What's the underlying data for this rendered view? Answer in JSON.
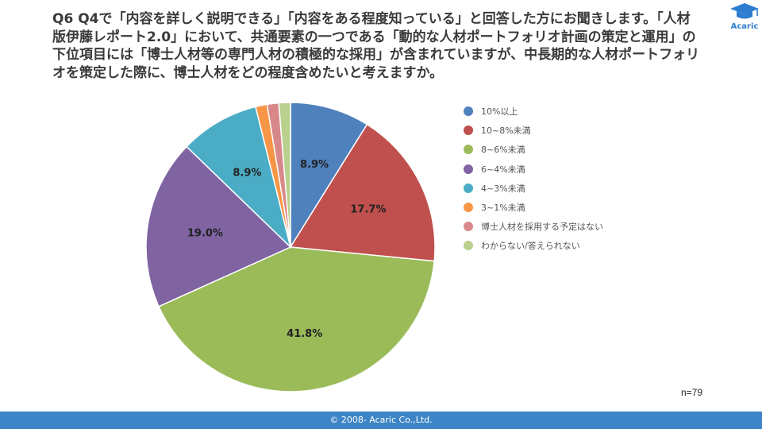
{
  "question": {
    "text": "Q6 Q4で「内容を詳しく説明できる」「内容をある程度知っている」と回答した方にお聞きします。「人材版伊藤レポート2.0」において、共通要素の一つである「動的な人材ポートフォリオ計画の策定と運用」の下位項目には「博士人材等の専門人材の積極的な採用」が含まれていますが、中長期的な人材ポートフォリオを策定した際に、博士人材をどの程度含めたいと考えますか。"
  },
  "logo": {
    "text": "Acaric",
    "icon": "mortarboard-icon",
    "color": "#2e7dd1"
  },
  "chart_data": {
    "type": "pie",
    "categories": [
      "10%以上",
      "10~8%未満",
      "8~6%未満",
      "6~4%未満",
      "4~3%未満",
      "3~1%未満",
      "博士人材を採用する予定はない",
      "わからない/答えられない"
    ],
    "values": [
      8.9,
      17.7,
      41.8,
      19.0,
      8.9,
      1.3,
      1.3,
      1.3
    ],
    "labels": [
      "8.9%",
      "17.7%",
      "41.8%",
      "19.0%",
      "8.9%",
      "",
      "",
      ""
    ],
    "colors": [
      "#4f81bd",
      "#c0504d",
      "#9bbb59",
      "#8064a2",
      "#4bacc6",
      "#f79646",
      "#d9888a",
      "#b9d08f"
    ],
    "legend_position": "right"
  },
  "sample_size": "n=79",
  "footer": {
    "text": "© 2008- Acaric Co.,Ltd."
  }
}
